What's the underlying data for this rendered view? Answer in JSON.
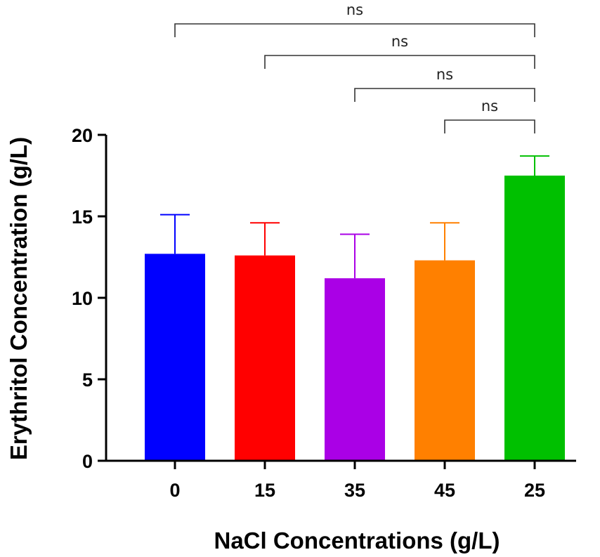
{
  "chart_data": {
    "type": "bar",
    "xlabel": "NaCl Concentrations (g/L)",
    "ylabel": "Erythritol Concentration (g/L)",
    "ylim": [
      0,
      20
    ],
    "yticks": [
      0,
      5,
      10,
      15,
      20
    ],
    "categories": [
      "0",
      "15",
      "35",
      "45",
      "25"
    ],
    "values": [
      12.7,
      12.6,
      11.2,
      12.3,
      17.5
    ],
    "error_upper": [
      15.1,
      14.6,
      13.9,
      14.6,
      18.7
    ],
    "colors": [
      "#0000ff",
      "#ff0000",
      "#aa00e6",
      "#ff8000",
      "#00c000"
    ],
    "grid": false,
    "comparisons": [
      {
        "from": "0",
        "to": "25",
        "label": "ns"
      },
      {
        "from": "15",
        "to": "25",
        "label": "ns"
      },
      {
        "from": "35",
        "to": "25",
        "label": "ns"
      },
      {
        "from": "45",
        "to": "25",
        "label": "ns"
      }
    ]
  }
}
